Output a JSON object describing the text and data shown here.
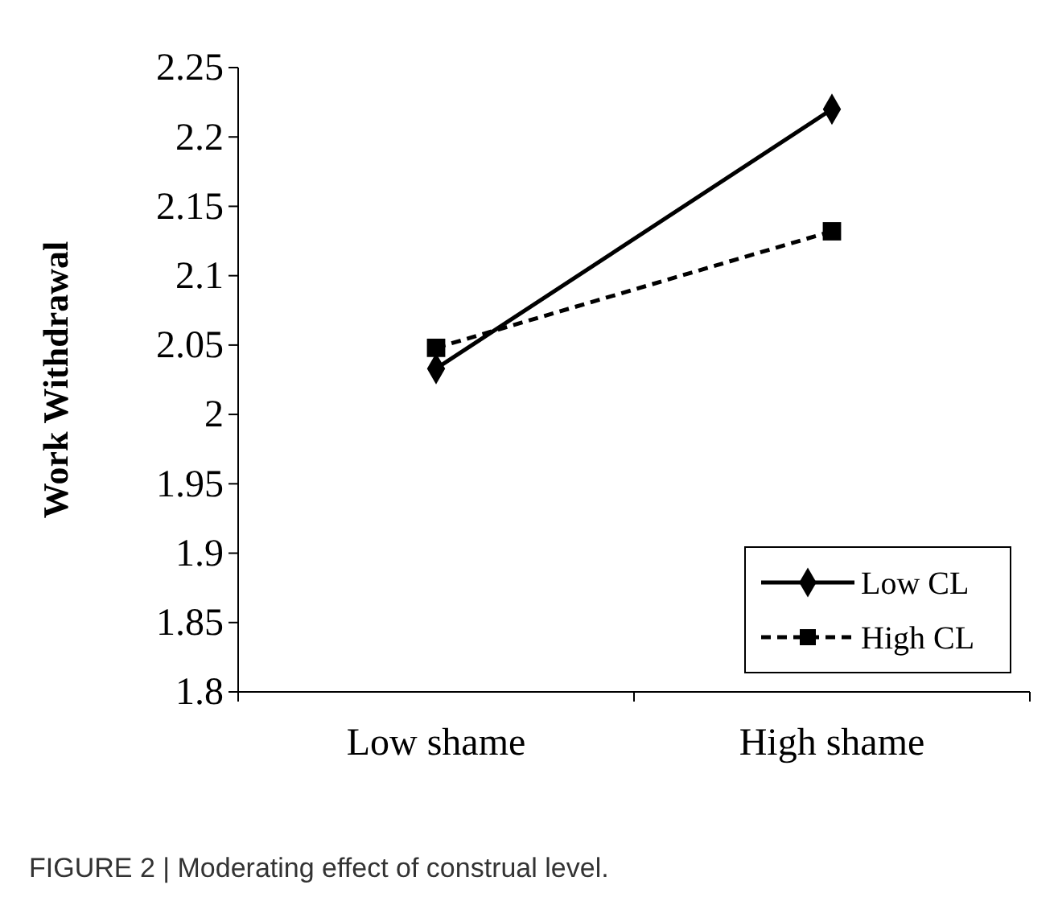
{
  "chart_data": {
    "type": "line",
    "ylabel": "Work Withdrawal",
    "categories": [
      "Low shame",
      "High shame"
    ],
    "series": [
      {
        "name": "Low CL",
        "color": "#000000",
        "values": [
          2.033,
          2.22
        ],
        "marker": "diamond",
        "line_style": "solid"
      },
      {
        "name": "High CL",
        "color": "#000000",
        "values": [
          2.048,
          2.132
        ],
        "marker": "square",
        "line_style": "dashed"
      }
    ],
    "ylim": [
      1.8,
      2.25
    ],
    "yticks": [
      1.8,
      1.85,
      1.9,
      1.95,
      2,
      2.05,
      2.1,
      2.15,
      2.2,
      2.25
    ],
    "grid": false,
    "legend": "bottom right",
    "annotations": [
      "FIGURE 2 | Moderating effect of construal level."
    ]
  }
}
